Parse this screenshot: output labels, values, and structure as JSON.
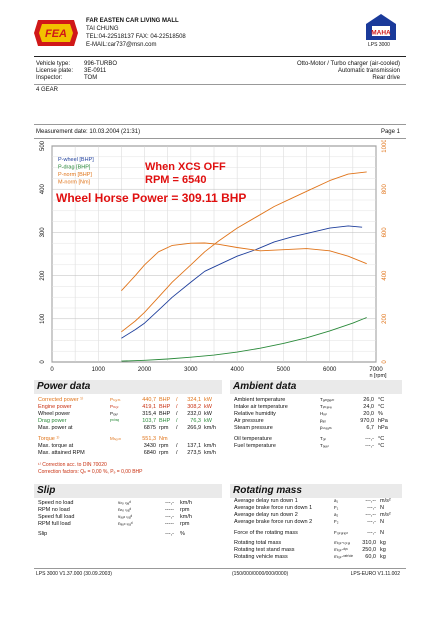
{
  "header": {
    "company": "FAR EASTEN CAR LIVING MALL",
    "contact_name": "TAI CHUNG",
    "tel_fax": "TEL:04-22518137  FAX: 04-22518508",
    "email": "E-MAIL:car737@msn.com",
    "logo_left_text": "FEA",
    "logo_right_text": "MAHA",
    "lps_label": "LPS 3000"
  },
  "vehicle": {
    "labels": [
      "Vehicle type:",
      "License plate:",
      "Inspector:"
    ],
    "values": [
      "996-TURBO",
      "3E-0911",
      "TOM"
    ],
    "engine": "Otto-Motor / Turbo charger (air-cooled)",
    "transmission": "Automatic transmission",
    "drive": "Rear drive",
    "gear": "4 GEAR"
  },
  "measurement": {
    "date_label": "Measurement date: 10.03.2004 (21:31)",
    "page": "Page 1"
  },
  "chart_data": {
    "type": "line",
    "title": "",
    "annotations": [
      "When XCS OFF",
      "RPM = 6540",
      "Wheel Horse Power = 309.11 BHP"
    ],
    "xlabel": "n [rpm]",
    "x_ticks": [
      "0",
      "1000",
      "2000",
      "3000",
      "4000",
      "5000",
      "6000",
      "7000"
    ],
    "y_left_ticks": [
      "0",
      "100",
      "200",
      "300",
      "400",
      "500"
    ],
    "y_right_ticks": [
      "0",
      "200",
      "400",
      "600",
      "800",
      "1000"
    ],
    "xlim": [
      0,
      7000
    ],
    "ylim_left": [
      0,
      500
    ],
    "ylim_right": [
      0,
      1000
    ],
    "legend": [
      "P-wheel [BHP]",
      "P-drag [BHP]",
      "P-norm [BHP]",
      "M-norm [Nm]"
    ],
    "legend_position": "top-left",
    "grid": true,
    "series": [
      {
        "name": "P-wheel [BHP]",
        "color": "#1f3f9c",
        "axis": "left",
        "x": [
          1500,
          1800,
          2000,
          2300,
          2600,
          3000,
          3300,
          3600,
          4000,
          4400,
          4800,
          5200,
          5600,
          6000,
          6400,
          6700
        ],
        "y": [
          55,
          75,
          90,
          120,
          150,
          185,
          210,
          225,
          245,
          260,
          278,
          290,
          300,
          310,
          315,
          312
        ]
      },
      {
        "name": "P-drag [BHP]",
        "color": "#2a8a3a",
        "axis": "left",
        "x": [
          1500,
          2000,
          2500,
          3000,
          3500,
          4000,
          4500,
          5000,
          5500,
          6000,
          6500,
          6800
        ],
        "y": [
          2,
          4,
          7,
          11,
          16,
          23,
          32,
          43,
          56,
          72,
          90,
          103
        ]
      },
      {
        "name": "P-norm [BHP]",
        "color": "#e0741a",
        "axis": "left",
        "x": [
          1500,
          1800,
          2000,
          2300,
          2600,
          3000,
          3300,
          3600,
          4000,
          4400,
          4800,
          5200,
          5600,
          6000,
          6400,
          6800
        ],
        "y": [
          70,
          95,
          115,
          150,
          185,
          225,
          255,
          280,
          310,
          335,
          360,
          380,
          400,
          420,
          435,
          440
        ]
      },
      {
        "name": "M-norm [Nm]",
        "color": "#e0741a",
        "axis": "right",
        "x": [
          1500,
          1800,
          2000,
          2300,
          2600,
          3000,
          3300,
          3600,
          4000,
          4500,
          5000,
          5500,
          6000,
          6400,
          6800
        ],
        "y": [
          330,
          400,
          450,
          510,
          540,
          550,
          551,
          545,
          530,
          515,
          520,
          525,
          515,
          490,
          455
        ]
      }
    ]
  },
  "power": {
    "title": "Power data",
    "rows": [
      {
        "label": "Corrected power ¹⁾",
        "sym": "Pₙₒᵣₘ",
        "v1": "440,7",
        "u1": "BHP",
        "sep": "/",
        "v2": "324,1",
        "u2": "kW",
        "color": "#e0741a"
      },
      {
        "label": "Engine power",
        "sym": "Pₘₒₜ",
        "v1": "419,1",
        "u1": "BHP",
        "sep": "/",
        "v2": "308,2",
        "u2": "kW",
        "color": "#c83010"
      },
      {
        "label": "Wheel power",
        "sym": "Pᵢₒᵤₗ",
        "v1": "315,4",
        "u1": "BHP",
        "sep": "/",
        "v2": "232,0",
        "u2": "kW",
        "color": "#111111"
      },
      {
        "label": "Drag power",
        "sym": "Pᵈʳᵃᵍ",
        "v1": "103,7",
        "u1": "BHP",
        "sep": "/",
        "v2": "76,3",
        "u2": "kW",
        "color": "#2a8a3a"
      },
      {
        "label": "Max. power at",
        "sym": "",
        "v1": "6875",
        "u1": "rpm",
        "sep": "/",
        "v2": "266,9",
        "u2": "km/h",
        "color": "#111111"
      },
      {
        "label": "Torque ¹⁾",
        "sym": "Mₙₒᵣₘ",
        "v1": "551,3",
        "u1": "Nm",
        "sep": "",
        "v2": "",
        "u2": "",
        "color": "#e0741a"
      },
      {
        "label": "Max. torque at",
        "sym": "",
        "v1": "3430",
        "u1": "rpm",
        "sep": "/",
        "v2": "137,1",
        "u2": "km/h",
        "color": "#111111"
      },
      {
        "label": "Max. attained RPM",
        "sym": "",
        "v1": "6840",
        "u1": "rpm",
        "sep": "/",
        "v2": "273,5",
        "u2": "km/h",
        "color": "#111111"
      }
    ],
    "note1": "¹⁾ Correction acc. to DIN 70020",
    "note2": "Correction factors: Qₕ = 0,00 %, Pₔ = 0,00 BHP"
  },
  "ambient": {
    "title": "Ambient data",
    "rows": [
      {
        "label": "Ambient temperature",
        "sym": "Tₐₘᵦᵢₑₙₜ",
        "v": "26,0",
        "u": "°C"
      },
      {
        "label": "Intake air temperature",
        "sym": "Tᵢₙₜₐₖₑ",
        "v": "24,0",
        "u": "°C"
      },
      {
        "label": "Relative humidity",
        "sym": "Hᵣₑₗ",
        "v": "20,0",
        "u": "%"
      },
      {
        "label": "Air pressure",
        "sym": "pₐᵢᵣ",
        "v": "970,0",
        "u": "hPa"
      },
      {
        "label": "Steam pressure",
        "sym": "pₛₜₑₐₘ",
        "v": "6,7",
        "u": "hPa"
      },
      {
        "label": "Oil temperature",
        "sym": "Tₒᵢₗ",
        "v": "---,-",
        "u": "°C"
      },
      {
        "label": "Fuel temperature",
        "sym": "Tₔᵤₑₗ",
        "v": "---,-",
        "u": "°C"
      }
    ]
  },
  "slip": {
    "title": "Slip",
    "rows": [
      {
        "label": "Speed no load",
        "sym": "vₙₒ ₗₒₐᵈ",
        "v": "---,-",
        "u": "km/h"
      },
      {
        "label": "RPM no load",
        "sym": "nₙₒ ₗₒₐᵈ",
        "v": "-----",
        "u": "rpm"
      },
      {
        "label": "Speed full load",
        "sym": "vₔᵤₗₗ ₗₒₐᵈ",
        "v": "---,-",
        "u": "km/h"
      },
      {
        "label": "RPM full load",
        "sym": "nₔᵤₗₗ ₗₒₐᵈ",
        "v": "-----",
        "u": "rpm"
      },
      {
        "label": "Slip",
        "sym": "",
        "v": "---,-",
        "u": "%"
      }
    ]
  },
  "rotating": {
    "title": "Rotating mass",
    "rows": [
      {
        "label": "Average delay run down 1",
        "sym": "a₁",
        "v": "---,--",
        "u": "m/s²"
      },
      {
        "label": "Average brake force run down 1",
        "sym": "F₁",
        "v": "---,-",
        "u": "N"
      },
      {
        "label": "Average delay run down 2",
        "sym": "a₂",
        "v": "---,--",
        "u": "m/s²"
      },
      {
        "label": "Average brake force run down 2",
        "sym": "F₂",
        "v": "---,-",
        "u": "N"
      },
      {
        "label": "Force of the rotating mass",
        "sym": "Fᵣₒₜₐₜᵢₒₙ",
        "v": "---,-",
        "u": "N"
      },
      {
        "label": "Rotating total mass",
        "sym": "mᵣₒₜ‐ₜₒₜₐₗ",
        "v": "310,0",
        "u": "kg"
      },
      {
        "label": "Rotating test stand mass",
        "sym": "mᵣₒₜ‐ᵈʸⁿ",
        "v": "250,0",
        "u": "kg"
      },
      {
        "label": "Rotating vehicle mass",
        "sym": "mᵣₒₜ‐ᵛᵉʰⁱᶜˡᵉ",
        "v": "60,0",
        "u": "kg"
      }
    ]
  },
  "footer": {
    "left": "LPS 3000 V1.37.000 (30.09.2003)",
    "center": "(150/000/0000/000/0000)",
    "right": "LPS-EURO V1.11.002"
  }
}
